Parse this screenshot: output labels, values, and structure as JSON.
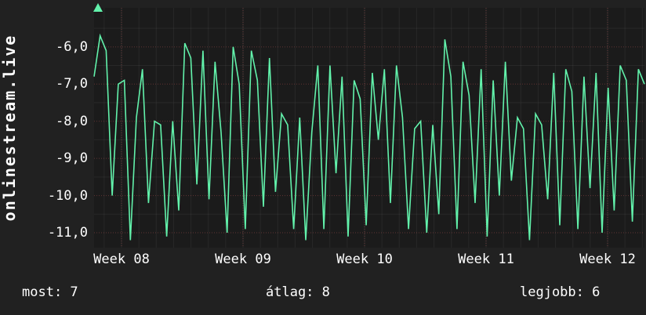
{
  "chart": {
    "vertical_title": "onlinestream.live"
  },
  "stats": {
    "most_label": "most: 7",
    "atlag_label": "átlag: 8",
    "legjobb_label": "legjobb: 6"
  },
  "chart_data": {
    "type": "line",
    "title": "",
    "ylabel": "onlinestream.live",
    "xlabel": "",
    "x_tick_labels": [
      "Week 08",
      "Week 09",
      "Week 10",
      "Week 11",
      "Week 12"
    ],
    "y_ticks": [
      -6,
      -7,
      -8,
      -9,
      -10,
      -11
    ],
    "y_tick_labels": [
      "-6,0",
      "-7,0",
      "-8,0",
      "-9,0",
      "-10,0",
      "-11,0"
    ],
    "ylim": [
      -11.4,
      -4.95
    ],
    "grid": true,
    "legend_position": "none",
    "line_color": "#62f2ab",
    "bg_color": "#212121",
    "plot_bg_color": "#1b1b1b",
    "major_grid_color": "rgba(255,110,110,0.30)",
    "minor_grid_color": "rgba(255,255,255,0.06)",
    "series": [
      {
        "name": "onlinestream.live",
        "values": [
          -6.8,
          -5.7,
          -6.1,
          -10.0,
          -7.0,
          -6.9,
          -11.2,
          -7.9,
          -6.6,
          -10.2,
          -8.0,
          -8.1,
          -11.1,
          -8.0,
          -10.4,
          -5.9,
          -6.3,
          -9.7,
          -6.1,
          -10.1,
          -6.4,
          -8.3,
          -11.0,
          -6.0,
          -7.0,
          -10.9,
          -6.1,
          -6.9,
          -10.3,
          -6.3,
          -9.9,
          -7.8,
          -8.1,
          -10.9,
          -7.9,
          -11.2,
          -8.3,
          -6.5,
          -10.9,
          -6.5,
          -9.4,
          -6.8,
          -11.1,
          -6.9,
          -7.4,
          -10.8,
          -6.7,
          -8.5,
          -6.6,
          -10.2,
          -6.5,
          -7.9,
          -10.9,
          -8.2,
          -8.0,
          -11.0,
          -8.1,
          -10.5,
          -5.8,
          -6.8,
          -10.9,
          -6.4,
          -7.3,
          -10.2,
          -6.6,
          -11.1,
          -6.9,
          -10.0,
          -6.4,
          -9.6,
          -7.9,
          -8.2,
          -11.2,
          -7.8,
          -8.1,
          -10.1,
          -6.7,
          -10.8,
          -6.6,
          -7.2,
          -10.9,
          -6.8,
          -9.8,
          -6.7,
          -11.0,
          -7.1,
          -10.4,
          -6.5,
          -6.9,
          -10.7,
          -6.6,
          -7.0
        ]
      }
    ],
    "stats": {
      "most": 7,
      "atlag": 8,
      "legjobb": 6
    }
  }
}
